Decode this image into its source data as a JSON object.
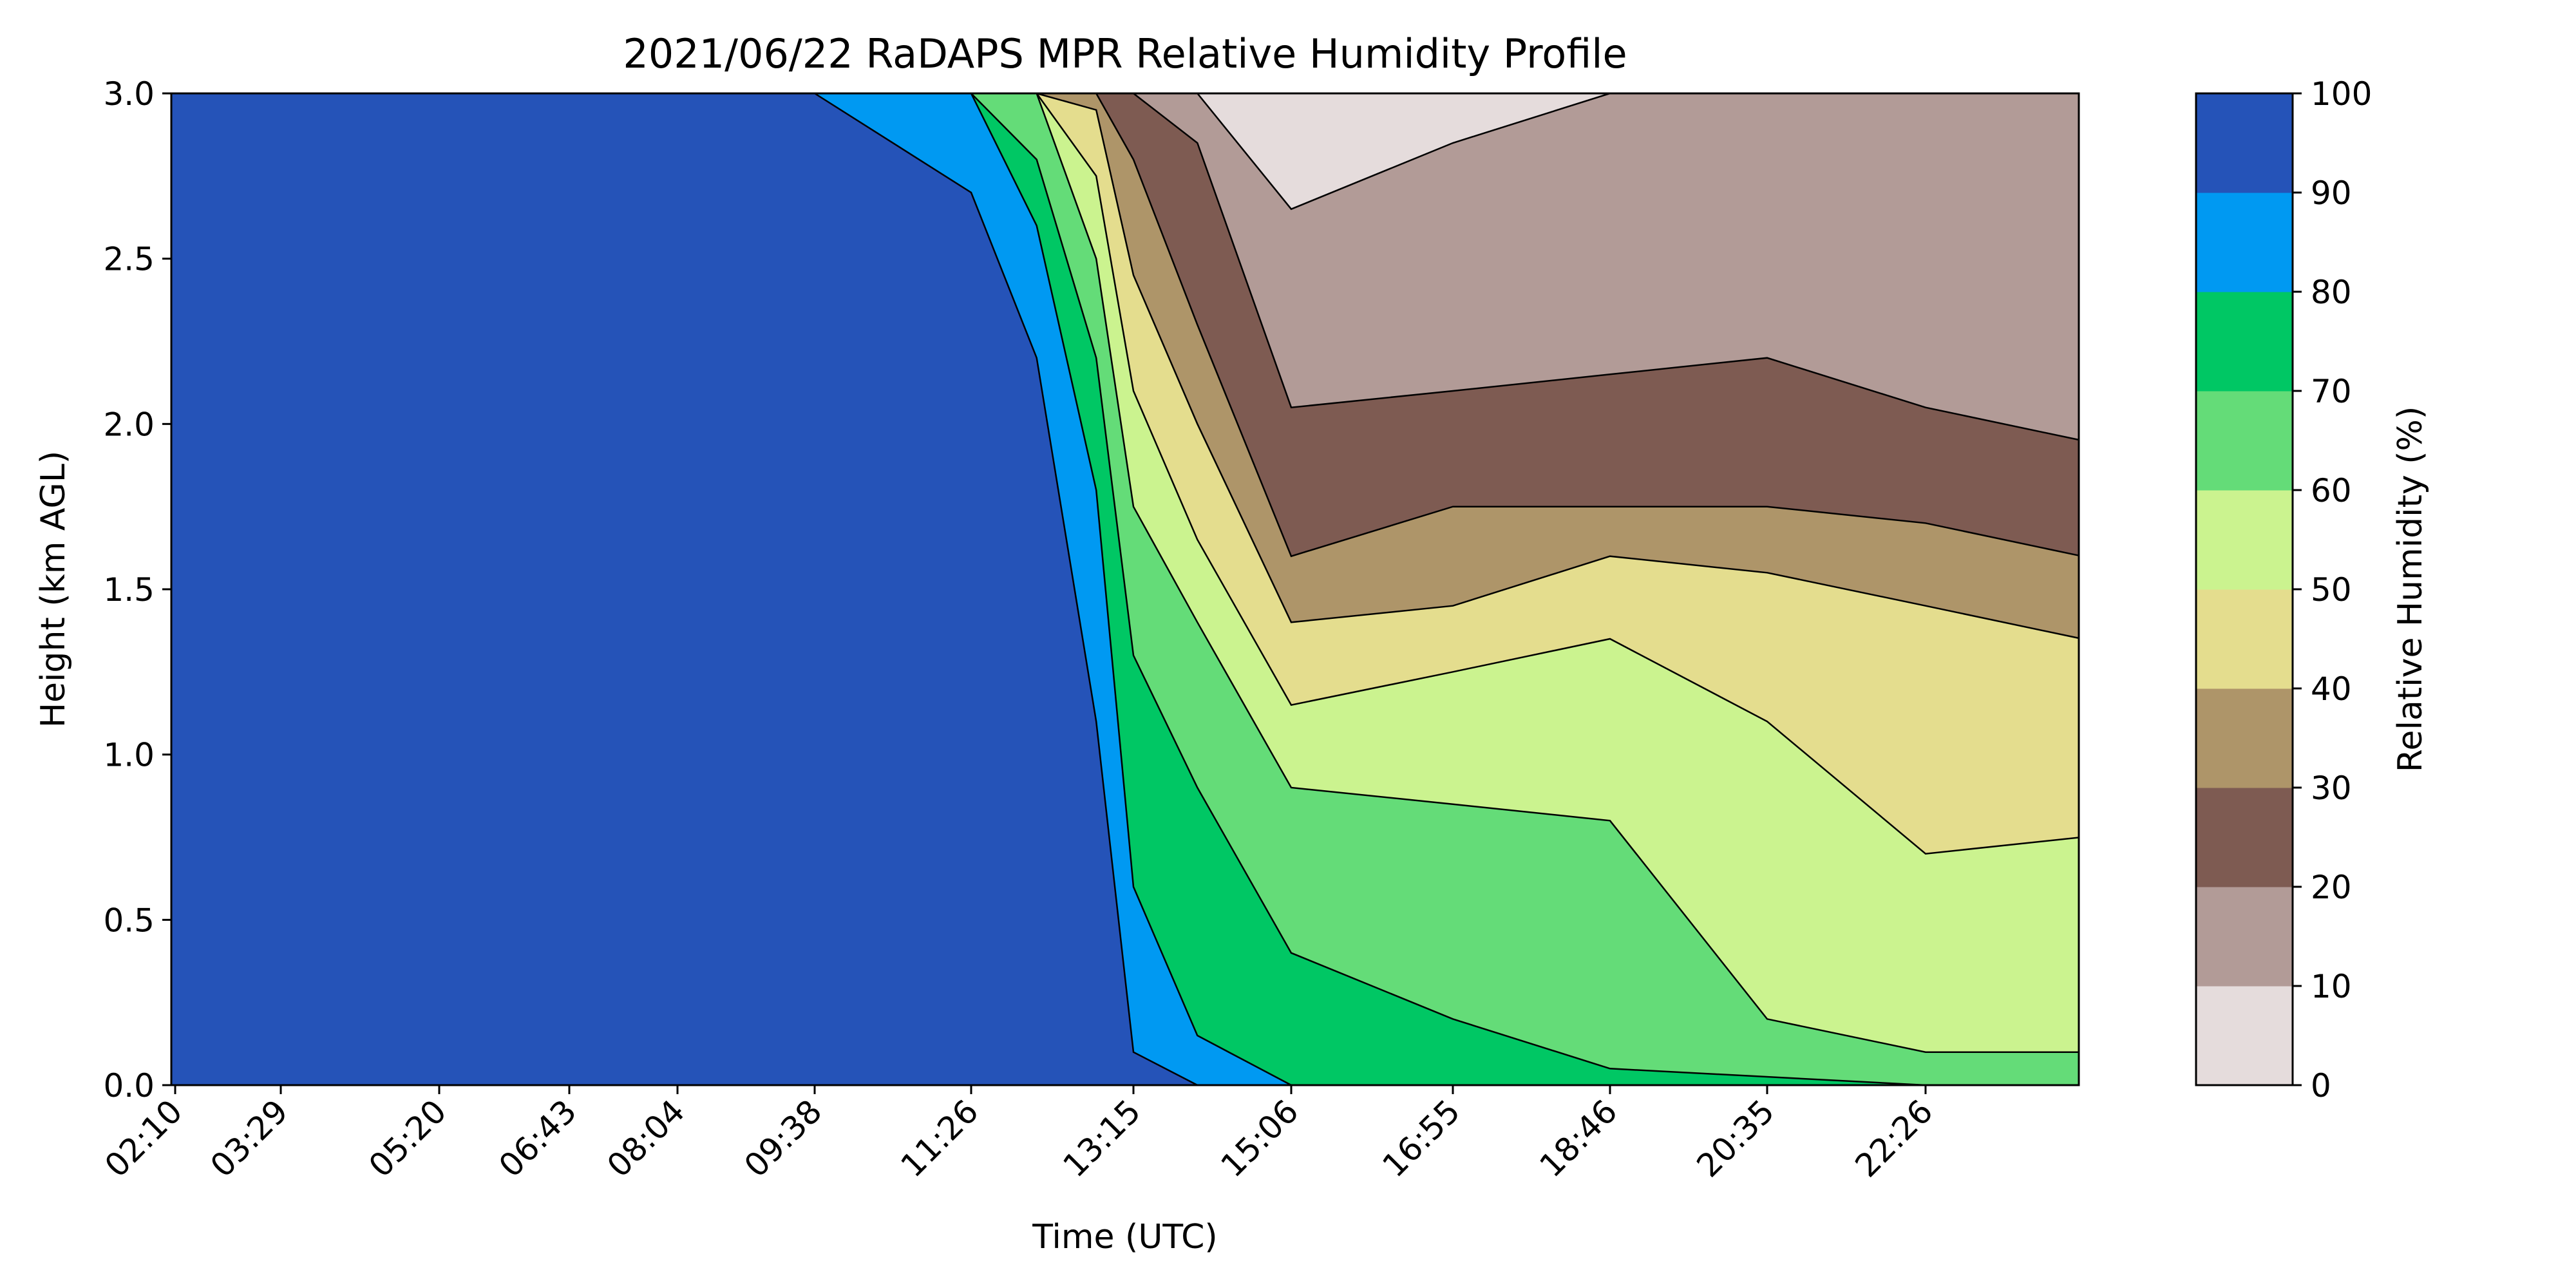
{
  "chart_data": {
    "type": "heatmap",
    "subtype": "filled-contour",
    "title": "2021/06/22 RaDAPS MPR Relative Humidity Profile",
    "xlabel": "Time (UTC)",
    "ylabel": "Height (km AGL)",
    "colorbar_label": "Relative Humidity (%)",
    "x_ticks": [
      "02:10",
      "03:29",
      "05:20",
      "06:43",
      "08:04",
      "09:38",
      "11:26",
      "13:15",
      "15:06",
      "16:55",
      "18:46",
      "20:35",
      "22:26"
    ],
    "y_ticks": [
      "0.0",
      "0.5",
      "1.0",
      "1.5",
      "2.0",
      "2.5",
      "3.0"
    ],
    "ylim": [
      0,
      3.0
    ],
    "colorbar_ticks": [
      "0",
      "10",
      "20",
      "30",
      "40",
      "50",
      "60",
      "70",
      "80",
      "90",
      "100"
    ],
    "levels": [
      0,
      10,
      20,
      30,
      40,
      50,
      60,
      70,
      80,
      90,
      100
    ],
    "colors": [
      "#e5dcdc",
      "#b29b97",
      "#7e5b52",
      "#ae9569",
      "#e4dd8e",
      "#cbf38f",
      "#64dc78",
      "#00c764",
      "#0099f2",
      "#2553b8"
    ],
    "contour_boundaries_km": [
      {
        "level": 90,
        "x": [
          "02:10",
          "06:43",
          "08:04",
          "09:38",
          "11:26",
          "12:10",
          "12:50",
          "13:15",
          "14:00",
          "16:55",
          "22:26",
          "23:40"
        ],
        "y": [
          3.0,
          3.0,
          3.0,
          3.0,
          2.7,
          2.2,
          1.1,
          0.1,
          0.0,
          0.0,
          0.0,
          0.0
        ]
      },
      {
        "level": 80,
        "x": [
          "02:10",
          "11:26",
          "12:10",
          "12:50",
          "13:15",
          "14:00",
          "15:06",
          "16:55",
          "22:26",
          "23:40"
        ],
        "y": [
          3.0,
          3.0,
          2.6,
          1.8,
          0.6,
          0.15,
          0.0,
          0.0,
          0.0,
          0.0
        ]
      },
      {
        "level": 70,
        "x": [
          "02:10",
          "11:26",
          "12:10",
          "12:50",
          "13:15",
          "14:00",
          "15:06",
          "16:55",
          "18:46",
          "22:26",
          "23:40"
        ],
        "y": [
          3.0,
          3.0,
          2.8,
          2.2,
          1.3,
          0.9,
          0.4,
          0.2,
          0.05,
          0.0,
          0.0
        ]
      },
      {
        "level": 60,
        "x": [
          "02:10",
          "11:26",
          "12:10",
          "12:50",
          "13:15",
          "14:00",
          "15:06",
          "16:55",
          "18:46",
          "20:35",
          "22:26",
          "23:40"
        ],
        "y": [
          3.0,
          3.0,
          3.0,
          2.5,
          1.75,
          1.4,
          0.9,
          0.85,
          0.8,
          0.2,
          0.1,
          0.1
        ]
      },
      {
        "level": 50,
        "x": [
          "02:10",
          "11:26",
          "12:10",
          "12:50",
          "13:15",
          "14:00",
          "15:06",
          "16:55",
          "18:46",
          "20:35",
          "22:26",
          "23:40"
        ],
        "y": [
          3.0,
          3.0,
          3.0,
          2.75,
          2.1,
          1.65,
          1.15,
          1.25,
          1.35,
          1.1,
          0.7,
          0.75
        ]
      },
      {
        "level": 40,
        "x": [
          "02:10",
          "11:26",
          "12:10",
          "12:50",
          "13:15",
          "14:00",
          "15:06",
          "16:55",
          "18:46",
          "20:35",
          "22:26",
          "23:40"
        ],
        "y": [
          3.0,
          3.0,
          3.0,
          2.95,
          2.45,
          2.0,
          1.4,
          1.45,
          1.6,
          1.55,
          1.45,
          1.35
        ]
      },
      {
        "level": 30,
        "x": [
          "02:10",
          "11:26",
          "12:10",
          "12:50",
          "13:15",
          "14:00",
          "15:06",
          "16:55",
          "18:46",
          "20:35",
          "22:26",
          "23:40"
        ],
        "y": [
          3.0,
          3.0,
          3.0,
          3.0,
          2.8,
          2.3,
          1.6,
          1.75,
          1.75,
          1.75,
          1.7,
          1.6
        ]
      },
      {
        "level": 20,
        "x": [
          "02:10",
          "11:26",
          "12:10",
          "12:50",
          "13:15",
          "14:00",
          "15:06",
          "16:55",
          "18:46",
          "20:35",
          "22:26",
          "23:40"
        ],
        "y": [
          3.0,
          3.0,
          3.0,
          3.0,
          3.0,
          2.85,
          2.05,
          2.1,
          2.15,
          2.2,
          2.05,
          1.95
        ]
      },
      {
        "level": 10,
        "x": [
          "02:10",
          "13:15",
          "14:00",
          "15:06",
          "16:55",
          "18:46",
          "20:35",
          "22:26",
          "23:40"
        ],
        "y": [
          3.0,
          3.0,
          3.0,
          2.65,
          2.85,
          3.0,
          3.0,
          3.0,
          3.0
        ]
      }
    ]
  }
}
